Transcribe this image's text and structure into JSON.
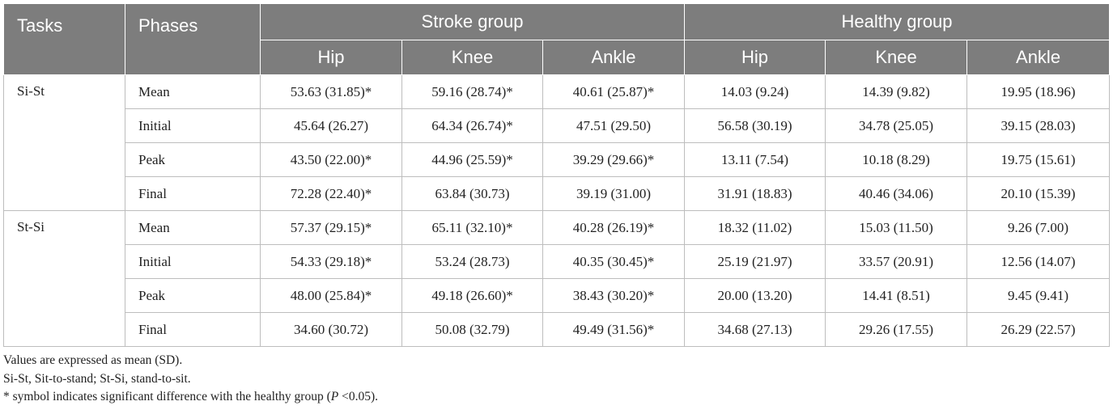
{
  "headers": {
    "tasks": "Tasks",
    "phases": "Phases",
    "stroke_group": "Stroke group",
    "healthy_group": "Healthy group",
    "joints": [
      "Hip",
      "Knee",
      "Ankle",
      "Hip",
      "Knee",
      "Ankle"
    ]
  },
  "rows": [
    {
      "task": "Si-St",
      "phase": "Mean",
      "values": [
        "53.63 (31.85)*",
        "59.16 (28.74)*",
        "40.61 (25.87)*",
        "14.03 (9.24)",
        "14.39 (9.82)",
        "19.95 (18.96)"
      ]
    },
    {
      "task": "",
      "phase": "Initial",
      "values": [
        "45.64 (26.27)",
        "64.34 (26.74)*",
        "47.51 (29.50)",
        "56.58 (30.19)",
        "34.78 (25.05)",
        "39.15 (28.03)"
      ]
    },
    {
      "task": "",
      "phase": "Peak",
      "values": [
        "43.50 (22.00)*",
        "44.96 (25.59)*",
        "39.29 (29.66)*",
        "13.11 (7.54)",
        "10.18 (8.29)",
        "19.75 (15.61)"
      ]
    },
    {
      "task": "",
      "phase": "Final",
      "values": [
        "72.28 (22.40)*",
        "63.84 (30.73)",
        "39.19 (31.00)",
        "31.91 (18.83)",
        "40.46 (34.06)",
        "20.10 (15.39)"
      ]
    },
    {
      "task": "St-Si",
      "phase": "Mean",
      "values": [
        "57.37 (29.15)*",
        "65.11 (32.10)*",
        "40.28 (26.19)*",
        "18.32 (11.02)",
        "15.03 (11.50)",
        "9.26 (7.00)"
      ]
    },
    {
      "task": "",
      "phase": "Initial",
      "values": [
        "54.33 (29.18)*",
        "53.24 (28.73)",
        "40.35 (30.45)*",
        "25.19 (21.97)",
        "33.57 (20.91)",
        "12.56 (14.07)"
      ]
    },
    {
      "task": "",
      "phase": "Peak",
      "values": [
        "48.00 (25.84)*",
        "49.18 (26.60)*",
        "38.43 (30.20)*",
        "20.00 (13.20)",
        "14.41 (8.51)",
        "9.45 (9.41)"
      ]
    },
    {
      "task": "",
      "phase": "Final",
      "values": [
        "34.60 (30.72)",
        "50.08 (32.79)",
        "49.49 (31.56)*",
        "34.68 (27.13)",
        "29.26 (17.55)",
        "26.29 (22.57)"
      ]
    }
  ],
  "notes": {
    "line1": "Values are expressed as mean (SD).",
    "line2": "Si-St, Sit-to-stand; St-Si, stand-to-sit.",
    "line3_prefix": "* symbol indicates significant difference with the healthy group (",
    "line3_p": "P",
    "line3_suffix": " <0.05)."
  },
  "colors": {
    "header_bg": "#7d7d7d",
    "header_text": "#ffffff",
    "border": "#bdbdbd"
  }
}
